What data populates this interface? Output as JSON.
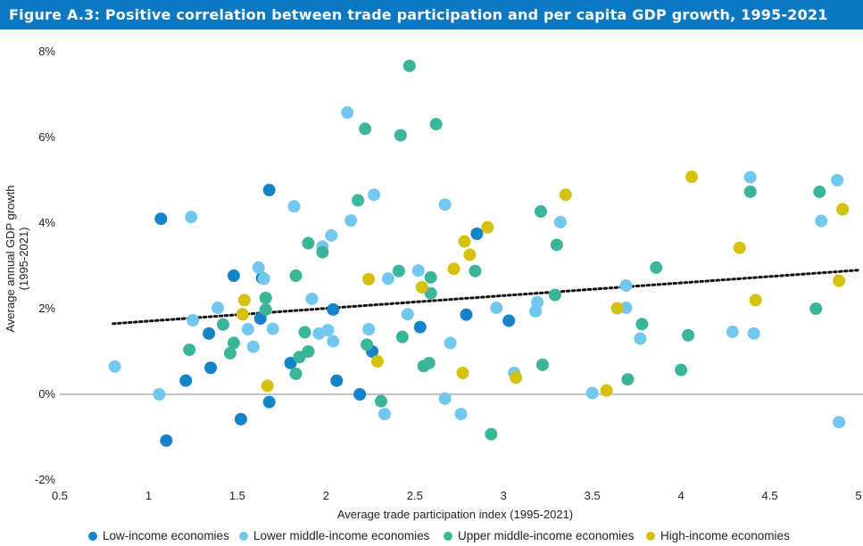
{
  "title": "Figure A.3: Positive correlation between trade participation and per capita GDP growth, 1995-2021",
  "colors": {
    "title_bg": "#0a78c2",
    "low": "#1583c7",
    "lower_middle": "#72c7ef",
    "upper_middle": "#3ab59a",
    "high": "#d4c10e",
    "zero_line": "#9e9e9e",
    "trend": "#111111"
  },
  "chart_data": {
    "type": "scatter",
    "title": "Figure A.3: Positive correlation between trade participation and per capita GDP growth, 1995-2021",
    "xlabel": "Average trade participation index (1995-2021)",
    "ylabel": "Average annual GDP growth\n(1995-2021)",
    "ylabel_lines": [
      "Average annual GDP growth",
      "(1995-2021)"
    ],
    "xlim": [
      0.5,
      5
    ],
    "ylim": [
      -2,
      8
    ],
    "x_ticks": [
      0.5,
      1,
      1.5,
      2,
      2.5,
      3,
      3.5,
      4,
      4.5,
      5
    ],
    "x_tick_labels": [
      "0.5",
      "1",
      "1.5",
      "2",
      "2.5",
      "3",
      "3.5",
      "4",
      "4.5",
      "5"
    ],
    "y_ticks": [
      -2,
      0,
      2,
      4,
      6,
      8
    ],
    "y_tick_labels": [
      "-2%",
      "0%",
      "2%",
      "4%",
      "6%",
      "8%"
    ],
    "zero_line": true,
    "grid": false,
    "legend_position": "bottom",
    "trendline": {
      "style": "dotted",
      "x": [
        0.8,
        5.0
      ],
      "y": [
        1.65,
        2.9
      ]
    },
    "series": [
      {
        "name": "Low-income economies",
        "color_key": "low",
        "points": [
          [
            1.07,
            4.1
          ],
          [
            1.1,
            -1.08
          ],
          [
            1.21,
            0.32
          ],
          [
            1.34,
            1.42
          ],
          [
            1.35,
            0.62
          ],
          [
            1.48,
            2.77
          ],
          [
            1.52,
            -0.58
          ],
          [
            1.63,
            1.77
          ],
          [
            1.64,
            2.72
          ],
          [
            1.68,
            4.77
          ],
          [
            1.68,
            -0.18
          ],
          [
            1.8,
            0.73
          ],
          [
            2.04,
            1.98
          ],
          [
            2.06,
            0.32
          ],
          [
            2.19,
            0.0
          ],
          [
            2.26,
            1.0
          ],
          [
            2.53,
            1.57
          ],
          [
            2.79,
            1.86
          ],
          [
            2.85,
            3.75
          ],
          [
            3.03,
            1.72
          ]
        ]
      },
      {
        "name": "Lower middle-income economies",
        "color_key": "lower_middle",
        "points": [
          [
            0.81,
            0.65
          ],
          [
            1.06,
            0.0
          ],
          [
            1.24,
            4.14
          ],
          [
            1.25,
            1.73
          ],
          [
            1.39,
            2.02
          ],
          [
            1.56,
            1.52
          ],
          [
            1.59,
            1.11
          ],
          [
            1.62,
            2.96
          ],
          [
            1.65,
            2.7
          ],
          [
            1.7,
            1.53
          ],
          [
            1.82,
            4.39
          ],
          [
            1.92,
            2.23
          ],
          [
            1.96,
            1.42
          ],
          [
            1.98,
            3.45
          ],
          [
            2.01,
            1.5
          ],
          [
            2.03,
            3.71
          ],
          [
            2.04,
            1.24
          ],
          [
            2.12,
            6.58
          ],
          [
            2.14,
            4.06
          ],
          [
            2.24,
            1.52
          ],
          [
            2.27,
            4.66
          ],
          [
            2.33,
            -0.46
          ],
          [
            2.35,
            2.7
          ],
          [
            2.46,
            1.87
          ],
          [
            2.52,
            2.89
          ],
          [
            2.67,
            -0.1
          ],
          [
            2.67,
            4.43
          ],
          [
            2.7,
            1.2
          ],
          [
            2.76,
            -0.46
          ],
          [
            2.96,
            2.02
          ],
          [
            3.06,
            0.5
          ],
          [
            3.18,
            1.94
          ],
          [
            3.19,
            2.15
          ],
          [
            3.32,
            4.02
          ],
          [
            3.5,
            0.03
          ],
          [
            3.69,
            2.54
          ],
          [
            3.69,
            2.02
          ],
          [
            3.77,
            1.3
          ],
          [
            4.29,
            1.46
          ],
          [
            4.39,
            5.07
          ],
          [
            4.41,
            1.42
          ],
          [
            4.79,
            4.05
          ],
          [
            4.88,
            5.0
          ],
          [
            4.89,
            -0.65
          ]
        ]
      },
      {
        "name": "Upper middle-income economies",
        "color_key": "upper_middle",
        "points": [
          [
            1.23,
            1.04
          ],
          [
            1.42,
            1.63
          ],
          [
            1.46,
            0.96
          ],
          [
            1.48,
            1.2
          ],
          [
            1.66,
            2.25
          ],
          [
            1.66,
            1.98
          ],
          [
            1.83,
            0.48
          ],
          [
            1.83,
            2.77
          ],
          [
            1.85,
            0.87
          ],
          [
            1.88,
            1.45
          ],
          [
            1.9,
            3.53
          ],
          [
            1.9,
            1.0
          ],
          [
            1.98,
            3.32
          ],
          [
            2.18,
            4.53
          ],
          [
            2.22,
            6.2
          ],
          [
            2.23,
            1.16
          ],
          [
            2.31,
            -0.16
          ],
          [
            2.41,
            2.88
          ],
          [
            2.42,
            6.05
          ],
          [
            2.43,
            1.34
          ],
          [
            2.47,
            7.67
          ],
          [
            2.55,
            0.66
          ],
          [
            2.58,
            0.73
          ],
          [
            2.59,
            2.36
          ],
          [
            2.59,
            2.73
          ],
          [
            2.62,
            6.31
          ],
          [
            2.84,
            2.88
          ],
          [
            2.93,
            -0.93
          ],
          [
            3.21,
            4.27
          ],
          [
            3.22,
            0.69
          ],
          [
            3.29,
            2.32
          ],
          [
            3.3,
            3.49
          ],
          [
            3.7,
            0.35
          ],
          [
            3.86,
            2.96
          ],
          [
            3.78,
            1.64
          ],
          [
            4.0,
            0.57
          ],
          [
            4.04,
            1.38
          ],
          [
            4.39,
            4.73
          ],
          [
            4.76,
            2.0
          ],
          [
            4.78,
            4.73
          ]
        ]
      },
      {
        "name": "High-income economies",
        "color_key": "high",
        "points": [
          [
            1.54,
            2.2
          ],
          [
            1.53,
            1.87
          ],
          [
            1.67,
            0.2
          ],
          [
            2.24,
            2.69
          ],
          [
            2.29,
            0.77
          ],
          [
            2.54,
            2.5
          ],
          [
            2.72,
            2.93
          ],
          [
            2.77,
            0.5
          ],
          [
            2.78,
            3.57
          ],
          [
            2.81,
            3.26
          ],
          [
            2.91,
            3.9
          ],
          [
            3.07,
            0.39
          ],
          [
            3.35,
            4.66
          ],
          [
            3.58,
            0.09
          ],
          [
            3.64,
            2.01
          ],
          [
            4.06,
            5.08
          ],
          [
            4.33,
            3.42
          ],
          [
            4.42,
            2.2
          ],
          [
            4.89,
            2.65
          ],
          [
            4.91,
            4.32
          ]
        ]
      }
    ]
  },
  "legend": {
    "items": [
      {
        "label": "Low-income economies",
        "color_key": "low"
      },
      {
        "label": "Lower middle-income economies",
        "color_key": "lower_middle"
      },
      {
        "label": "Upper middle-income economies",
        "color_key": "upper_middle"
      },
      {
        "label": "High-income economies",
        "color_key": "high"
      }
    ]
  }
}
